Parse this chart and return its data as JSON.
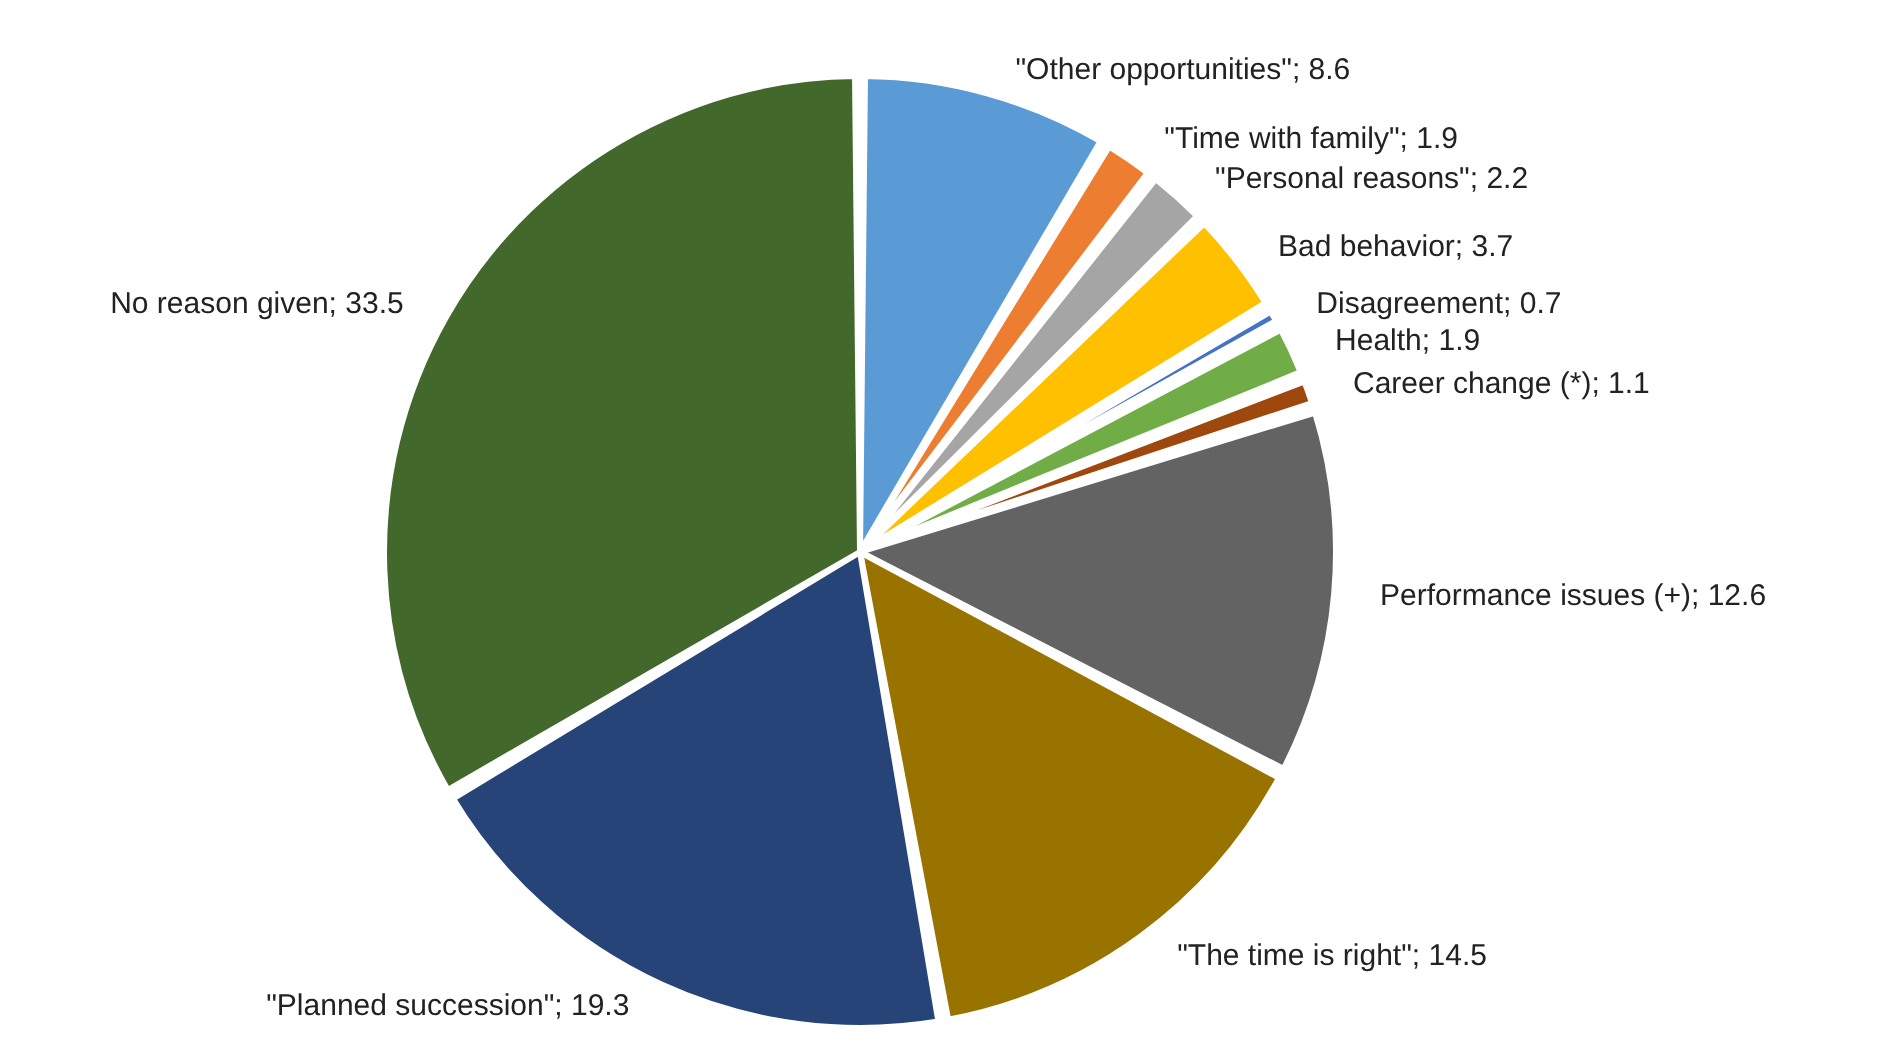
{
  "chart_data": {
    "type": "pie",
    "categories": [
      "\"Other opportunities\"",
      "\"Time with family\"",
      "\"Personal reasons\"",
      "Bad behavior",
      "Disagreement",
      "Health",
      "Career change (*)",
      "Performance issues (+)",
      "\"The time is right\"",
      "\"Planned succession\"",
      "No reason given"
    ],
    "values": [
      8.6,
      1.9,
      2.2,
      3.7,
      0.7,
      1.9,
      1.1,
      12.6,
      14.5,
      19.3,
      33.5
    ],
    "value_labels": [
      "; 8.6",
      "; 1.9",
      "; 2.2",
      "; 3.7",
      "; 0.7",
      "; 1.9",
      "; 1.1",
      "; 12.6",
      "; 14.5",
      "; 19.3",
      "; 33.5"
    ],
    "colors": [
      "#5b9bd5",
      "#ed7d31",
      "#a5a5a5",
      "#ffc000",
      "#4472c4",
      "#70ad47",
      "#9e480e",
      "#636363",
      "#997300",
      "#264478",
      "#43682b"
    ],
    "legend": false
  }
}
